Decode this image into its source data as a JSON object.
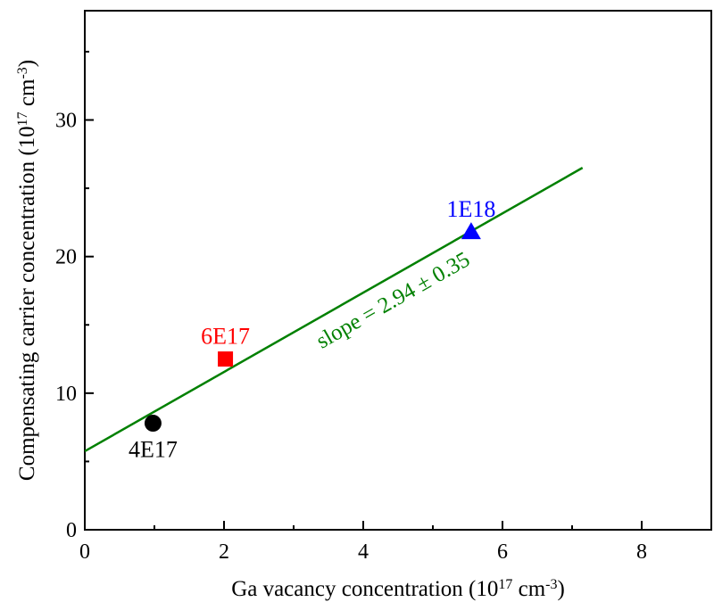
{
  "chart_data": {
    "type": "scatter",
    "xlabel": {
      "prefix": "Ga vacancy concentration (10",
      "sup1": "17",
      "mid": " cm",
      "sup2": "-3",
      "suffix": ")"
    },
    "ylabel": {
      "prefix": "Compensating carrier concentration (10",
      "sup1": "17",
      "mid": " cm",
      "sup2": "-3",
      "suffix": ")"
    },
    "xlim": [
      0,
      9
    ],
    "ylim": [
      0,
      38
    ],
    "xticks": [
      0,
      2,
      4,
      6,
      8
    ],
    "yticks": [
      0,
      10,
      20,
      30
    ],
    "points": [
      {
        "label": "4E17",
        "x": 0.98,
        "y": 7.8,
        "marker": "circle",
        "color": "#000000",
        "label_position": "below"
      },
      {
        "label": "6E17",
        "x": 2.02,
        "y": 12.5,
        "marker": "square",
        "color": "#ff0000",
        "label_position": "above"
      },
      {
        "label": "1E18",
        "x": 5.55,
        "y": 21.8,
        "marker": "triangle",
        "color": "#0000ff",
        "label_position": "above"
      }
    ],
    "fit": {
      "x": [
        0,
        7.15
      ],
      "y": [
        5.75,
        26.5
      ],
      "color": "#008000",
      "label": "slope = 2.94 ± 0.35"
    },
    "grid": false,
    "legend": "none"
  }
}
